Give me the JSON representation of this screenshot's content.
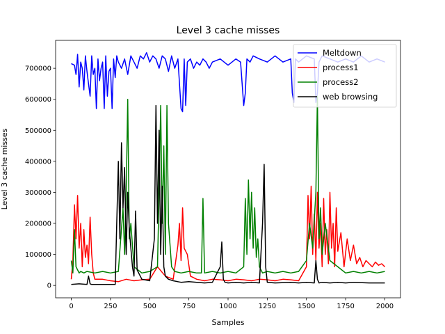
{
  "chart_data": {
    "type": "line",
    "title": "Level 3 cache misses",
    "xlabel": "Samples",
    "ylabel": "Level 3 cache misses",
    "xlim": [
      -100,
      2100
    ],
    "ylim": [
      -40000,
      790000
    ],
    "xticks": [
      0,
      250,
      500,
      750,
      1000,
      1250,
      1500,
      1750,
      2000
    ],
    "yticks": [
      0,
      100000,
      200000,
      300000,
      400000,
      500000,
      600000,
      700000
    ],
    "grid": false,
    "legend_position": "top-right",
    "series": [
      {
        "name": "Meltdown",
        "color": "#0000ff",
        "x": [
          0,
          20,
          30,
          40,
          50,
          60,
          70,
          80,
          90,
          100,
          110,
          120,
          130,
          140,
          150,
          160,
          170,
          180,
          190,
          200,
          210,
          220,
          230,
          240,
          250,
          260,
          270,
          280,
          290,
          300,
          320,
          340,
          360,
          380,
          400,
          420,
          440,
          460,
          480,
          500,
          520,
          540,
          560,
          580,
          600,
          620,
          640,
          660,
          680,
          700,
          710,
          720,
          730,
          740,
          760,
          780,
          800,
          820,
          840,
          860,
          880,
          900,
          950,
          1000,
          1050,
          1080,
          1100,
          1110,
          1120,
          1140,
          1160,
          1200,
          1250,
          1300,
          1350,
          1400,
          1410,
          1420,
          1430,
          1450,
          1500,
          1550,
          1560,
          1570,
          1580,
          1600,
          1650,
          1700,
          1750,
          1800,
          1850,
          1900,
          1950,
          2000
        ],
        "values": [
          715000,
          710000,
          680000,
          745000,
          640000,
          720000,
          700000,
          630000,
          740000,
          690000,
          650000,
          610000,
          740000,
          680000,
          700000,
          570000,
          730000,
          660000,
          700000,
          720000,
          570000,
          740000,
          610000,
          690000,
          700000,
          570000,
          730000,
          670000,
          740000,
          720000,
          700000,
          730000,
          680000,
          740000,
          720000,
          700000,
          740000,
          730000,
          750000,
          720000,
          740000,
          730000,
          700000,
          740000,
          730000,
          690000,
          740000,
          700000,
          730000,
          570000,
          560000,
          730000,
          580000,
          720000,
          730000,
          700000,
          720000,
          710000,
          730000,
          720000,
          700000,
          720000,
          730000,
          710000,
          730000,
          720000,
          580000,
          620000,
          730000,
          720000,
          740000,
          730000,
          720000,
          740000,
          720000,
          730000,
          620000,
          590000,
          730000,
          720000,
          740000,
          730000,
          590000,
          620000,
          720000,
          740000,
          730000,
          720000,
          730000,
          720000,
          740000,
          720000,
          730000,
          720000
        ]
      },
      {
        "name": "process1",
        "color": "#ff0000",
        "x": [
          0,
          10,
          20,
          30,
          40,
          50,
          60,
          70,
          80,
          90,
          100,
          110,
          120,
          130,
          140,
          150,
          200,
          250,
          300,
          350,
          400,
          450,
          500,
          550,
          600,
          650,
          680,
          690,
          700,
          710,
          720,
          740,
          760,
          800,
          850,
          900,
          950,
          1000,
          1050,
          1100,
          1150,
          1200,
          1250,
          1300,
          1350,
          1400,
          1450,
          1500,
          1510,
          1520,
          1530,
          1540,
          1550,
          1560,
          1570,
          1580,
          1590,
          1600,
          1610,
          1620,
          1630,
          1640,
          1650,
          1660,
          1670,
          1680,
          1690,
          1700,
          1720,
          1740,
          1760,
          1780,
          1800,
          1820,
          1840,
          1860,
          1880,
          1900,
          1920,
          1940,
          1960,
          1980,
          2000
        ],
        "values": [
          20000,
          80000,
          260000,
          150000,
          290000,
          120000,
          200000,
          60000,
          180000,
          90000,
          130000,
          70000,
          220000,
          100000,
          40000,
          20000,
          20000,
          15000,
          12000,
          20000,
          15000,
          18000,
          20000,
          60000,
          30000,
          20000,
          130000,
          200000,
          80000,
          250000,
          120000,
          100000,
          30000,
          20000,
          15000,
          20000,
          18000,
          15000,
          20000,
          18000,
          15000,
          20000,
          18000,
          15000,
          20000,
          18000,
          15000,
          60000,
          290000,
          150000,
          320000,
          100000,
          230000,
          80000,
          300000,
          120000,
          200000,
          60000,
          280000,
          100000,
          180000,
          70000,
          300000,
          120000,
          200000,
          60000,
          250000,
          110000,
          170000,
          60000,
          150000,
          80000,
          130000,
          70000,
          90000,
          60000,
          80000,
          70000,
          60000,
          75000,
          65000,
          70000,
          60000
        ]
      },
      {
        "name": "process2",
        "color": "#008000",
        "x": [
          0,
          10,
          20,
          30,
          40,
          50,
          60,
          80,
          100,
          150,
          200,
          250,
          300,
          330,
          340,
          350,
          360,
          370,
          380,
          400,
          450,
          500,
          550,
          560,
          570,
          580,
          590,
          600,
          610,
          620,
          640,
          660,
          700,
          750,
          800,
          830,
          840,
          850,
          900,
          950,
          1000,
          1050,
          1100,
          1110,
          1120,
          1130,
          1140,
          1150,
          1160,
          1170,
          1180,
          1190,
          1200,
          1220,
          1250,
          1300,
          1350,
          1400,
          1450,
          1500,
          1520,
          1540,
          1560,
          1570,
          1580,
          1590,
          1600,
          1620,
          1650,
          1700,
          1750,
          1800,
          1850,
          1900,
          1950,
          2000
        ],
        "values": [
          80000,
          40000,
          180000,
          60000,
          50000,
          40000,
          45000,
          40000,
          45000,
          40000,
          45000,
          40000,
          45000,
          250000,
          100000,
          300000,
          600000,
          150000,
          200000,
          60000,
          40000,
          45000,
          60000,
          300000,
          580000,
          200000,
          450000,
          100000,
          580000,
          200000,
          60000,
          45000,
          40000,
          45000,
          40000,
          40000,
          280000,
          40000,
          45000,
          40000,
          45000,
          40000,
          60000,
          280000,
          100000,
          340000,
          150000,
          300000,
          120000,
          250000,
          90000,
          150000,
          60000,
          40000,
          45000,
          40000,
          45000,
          40000,
          45000,
          80000,
          200000,
          120000,
          300000,
          610000,
          150000,
          250000,
          100000,
          200000,
          80000,
          60000,
          40000,
          45000,
          40000,
          45000,
          40000,
          45000
        ]
      },
      {
        "name": "web browsing",
        "color": "#000000",
        "x": [
          0,
          50,
          100,
          110,
          120,
          130,
          200,
          280,
          290,
          300,
          310,
          320,
          330,
          340,
          350,
          360,
          370,
          380,
          390,
          400,
          410,
          420,
          450,
          500,
          530,
          540,
          550,
          560,
          570,
          580,
          590,
          600,
          620,
          650,
          700,
          750,
          800,
          850,
          900,
          950,
          960,
          970,
          980,
          1000,
          1050,
          1100,
          1150,
          1200,
          1220,
          1230,
          1240,
          1250,
          1300,
          1400,
          1450,
          1500,
          1550,
          1560,
          1570,
          1580,
          1600,
          1650,
          1700,
          1750,
          1800,
          1900,
          2000
        ],
        "values": [
          3000,
          5000,
          3000,
          30000,
          5000,
          3000,
          3000,
          3000,
          200000,
          400000,
          150000,
          460000,
          250000,
          380000,
          100000,
          300000,
          180000,
          120000,
          60000,
          30000,
          240000,
          50000,
          20000,
          15000,
          150000,
          580000,
          200000,
          500000,
          100000,
          320000,
          60000,
          30000,
          20000,
          15000,
          10000,
          12000,
          10000,
          8000,
          10000,
          60000,
          140000,
          20000,
          10000,
          8000,
          10000,
          8000,
          10000,
          8000,
          200000,
          390000,
          60000,
          10000,
          8000,
          10000,
          8000,
          10000,
          8000,
          80000,
          20000,
          8000,
          10000,
          8000,
          10000,
          8000,
          10000,
          8000,
          8000
        ]
      }
    ]
  }
}
